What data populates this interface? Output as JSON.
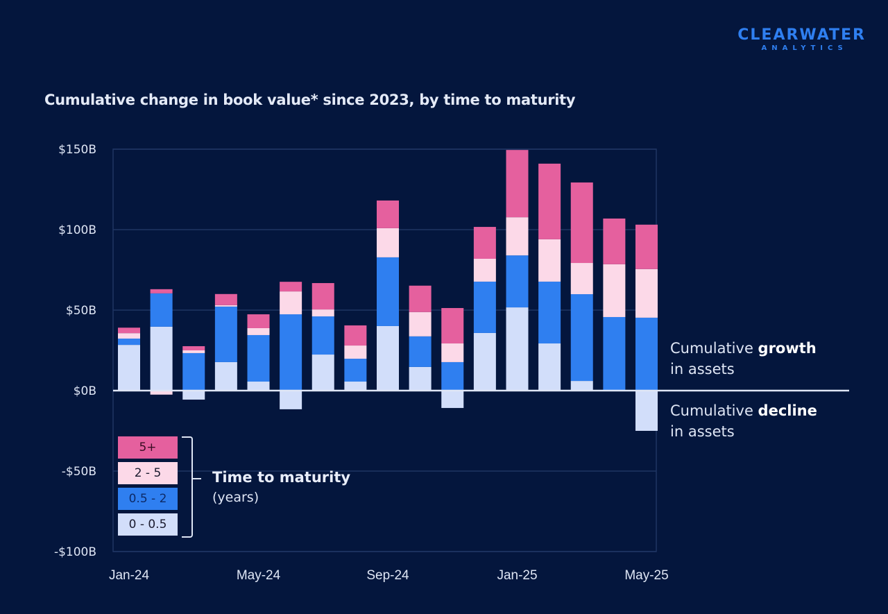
{
  "logo": {
    "line1": "CLEARWATER",
    "line2": "ANALYTICS"
  },
  "title": "Cumulative change in book value* since 2023, by time to maturity",
  "annotations": {
    "growth": {
      "prefix": "Cumulative ",
      "bold": "growth",
      "line2": "in assets"
    },
    "decline": {
      "prefix": "Cumulative ",
      "bold": "decline",
      "line2": "in assets"
    }
  },
  "legend": {
    "title": "Time to maturity",
    "subtitle": "(years)",
    "items": [
      {
        "label": "5+",
        "color": "#e5609e",
        "text_color": "#3a0d24"
      },
      {
        "label": "2 - 5",
        "color": "#fcd9e8",
        "text_color": "#1a1a2e"
      },
      {
        "label": "0.5 - 2",
        "color": "#2f7ff0",
        "text_color": "#0d2a66"
      },
      {
        "label": "0 - 0.5",
        "color": "#d2defa",
        "text_color": "#1a1a2e"
      }
    ]
  },
  "chart_data": {
    "type": "bar",
    "stacked": true,
    "title": "Cumulative change in book value* since 2023, by time to maturity",
    "xlabel": "",
    "ylabel": "",
    "ylim": [
      -100,
      150
    ],
    "yticks": [
      {
        "value": 150,
        "label": "$150B"
      },
      {
        "value": 100,
        "label": "$100B"
      },
      {
        "value": 50,
        "label": "$50B"
      },
      {
        "value": 0,
        "label": "$0B"
      },
      {
        "value": -50,
        "label": "-$50B"
      },
      {
        "value": -100,
        "label": "-$100B"
      }
    ],
    "xtick_labels": [
      {
        "index": 0,
        "label": "Jan-24"
      },
      {
        "index": 4,
        "label": "May-24"
      },
      {
        "index": 8,
        "label": "Sep-24"
      },
      {
        "index": 12,
        "label": "Jan-25"
      },
      {
        "index": 16,
        "label": "May-25"
      }
    ],
    "categories": [
      "Jan-24",
      "Feb-24",
      "Mar-24",
      "Apr-24",
      "May-24",
      "Jun-24",
      "Jul-24",
      "Aug-24",
      "Sep-24",
      "Oct-24",
      "Nov-24",
      "Dec-24",
      "Jan-25",
      "Feb-25",
      "Mar-25",
      "Apr-25",
      "May-25"
    ],
    "units": "$B",
    "grid": true,
    "legend_position": "bottom-left",
    "series": [
      {
        "name": "0 - 0.5",
        "color": "#d2defa",
        "values": [
          28.4,
          39.7,
          -5.6,
          17.7,
          5.6,
          -11.6,
          22.4,
          5.6,
          40.1,
          14.7,
          -10.8,
          35.8,
          51.7,
          29.3,
          6.0,
          0,
          -25.0
        ]
      },
      {
        "name": "0.5 - 2",
        "color": "#2f7ff0",
        "values": [
          3.9,
          20.7,
          23.3,
          34.5,
          28.9,
          47.4,
          23.7,
          14.2,
          42.7,
          19.0,
          17.7,
          31.9,
          32.3,
          38.4,
          53.9,
          45.7,
          45.3
        ]
      },
      {
        "name": "2 - 5",
        "color": "#fcd9e8",
        "values": [
          3.4,
          -2.5,
          1.7,
          0.9,
          4.3,
          14.2,
          4.3,
          8.2,
          18.1,
          15.1,
          11.6,
          14.2,
          23.7,
          26.3,
          19.4,
          32.8,
          30.2
        ]
      },
      {
        "name": "5+",
        "color": "#e5609e",
        "values": [
          3.4,
          2.6,
          2.6,
          6.9,
          8.6,
          6.0,
          16.4,
          12.5,
          17.2,
          16.4,
          22.0,
          19.8,
          41.8,
          47.0,
          50.0,
          28.4,
          27.6
        ]
      }
    ]
  }
}
